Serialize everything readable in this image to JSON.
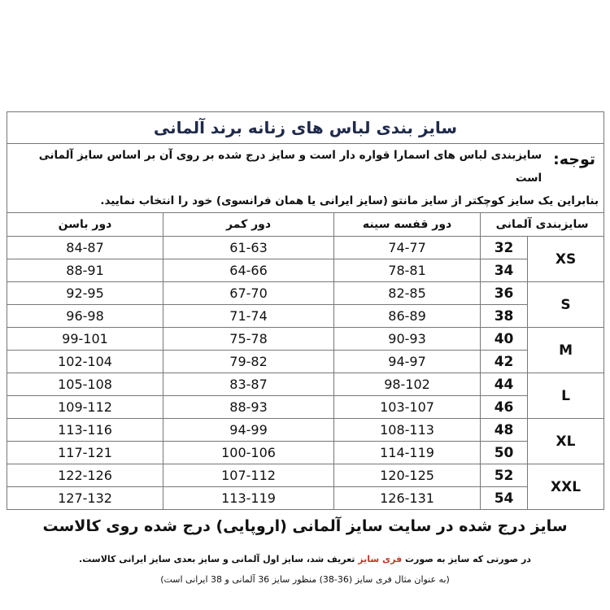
{
  "table": {
    "title": "سایز بندی لباس های زنانه برند آلمانی",
    "notice_label": "توجه:",
    "notice_line1": "سایزبندی لباس های اسمارا قواره دار است و سایز درج شده بر روی آن بر اساس سایز آلمانی است",
    "notice_line2": "بنابراین یک سایز کوچکتر از سایز مانتو (سایز ایرانی یا همان فرانسوی) خود را انتخاب نمایید.",
    "headers": {
      "german": "سایزبندی آلمانی",
      "bust": "دور قفسه سینه",
      "waist": "دور کمر",
      "hip": "دور باسن"
    },
    "groups": [
      {
        "letter": "XS",
        "rows": [
          {
            "de": "32",
            "bust": "74-77",
            "waist": "61-63",
            "hip": "84-87"
          },
          {
            "de": "34",
            "bust": "78-81",
            "waist": "64-66",
            "hip": "88-91"
          }
        ]
      },
      {
        "letter": "S",
        "rows": [
          {
            "de": "36",
            "bust": "82-85",
            "waist": "67-70",
            "hip": "92-95"
          },
          {
            "de": "38",
            "bust": "86-89",
            "waist": "71-74",
            "hip": "96-98"
          }
        ]
      },
      {
        "letter": "M",
        "rows": [
          {
            "de": "40",
            "bust": "90-93",
            "waist": "75-78",
            "hip": "99-101"
          },
          {
            "de": "42",
            "bust": "94-97",
            "waist": "79-82",
            "hip": "102-104"
          }
        ]
      },
      {
        "letter": "L",
        "rows": [
          {
            "de": "44",
            "bust": "98-102",
            "waist": "83-87",
            "hip": "105-108"
          },
          {
            "de": "46",
            "bust": "103-107",
            "waist": "88-93",
            "hip": "109-112"
          }
        ]
      },
      {
        "letter": "XL",
        "rows": [
          {
            "de": "48",
            "bust": "108-113",
            "waist": "94-99",
            "hip": "113-116"
          },
          {
            "de": "50",
            "bust": "114-119",
            "waist": "100-106",
            "hip": "117-121"
          }
        ]
      },
      {
        "letter": "XXL",
        "rows": [
          {
            "de": "52",
            "bust": "120-125",
            "waist": "107-112",
            "hip": "122-126"
          },
          {
            "de": "54",
            "bust": "126-131",
            "waist": "113-119",
            "hip": "127-132"
          }
        ]
      }
    ]
  },
  "footer": {
    "headline": "سایز درج شده در سایت سایز آلمانی (اروپایی) درج شده روی کالاست",
    "note_part1": "در صورتی که سایز به صورت ",
    "note_highlight": "فری سایز",
    "note_part2": " تعریف شد، سایز اول آلمانی و سایز بعدی سایز ایرانی کالاست.",
    "example": "(به عنوان مثال فری سایز (36-38) منظور سایز 36 آلمانی و 38 ایرانی است)",
    "highlight_color": "#c0392b"
  }
}
